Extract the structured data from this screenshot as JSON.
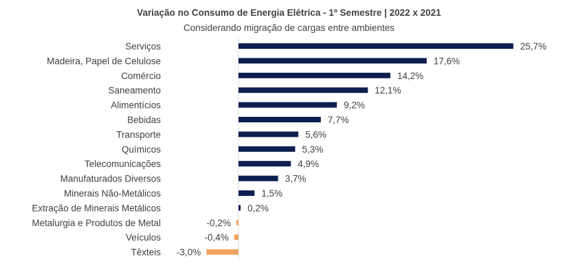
{
  "chart_data": {
    "type": "bar",
    "orientation": "horizontal",
    "title": "Variação no Consumo de Energia Elétrica - 1º Semestre | 2022 x 2021",
    "subtitle": "Considerando migração de cargas entre ambientes",
    "categories": [
      "Serviços",
      "Madeira, Papel de Celulose",
      "Comércio",
      "Saneamento",
      "Alimentícios",
      "Bebidas",
      "Transporte",
      "Químicos",
      "Telecomunicações",
      "Manufaturados Diversos",
      "Minerais Não-Metálicos",
      "Extração de Minerais Metálicos",
      "Metalurgia e Produtos de Metal",
      "Veículos",
      "Têxteis"
    ],
    "values": [
      25.7,
      17.6,
      14.2,
      12.1,
      9.2,
      7.7,
      5.6,
      5.3,
      4.9,
      3.7,
      1.5,
      0.2,
      -0.2,
      -0.4,
      -3.0
    ],
    "value_labels": [
      "25,7%",
      "17,6%",
      "14,2%",
      "12,1%",
      "9,2%",
      "7,7%",
      "5,6%",
      "5,3%",
      "4,9%",
      "3,7%",
      "1,5%",
      "0,2%",
      "-0,2%",
      "-0,4%",
      "-3,0%"
    ],
    "colors": {
      "positive": "#0d1f4f",
      "negative": "#f0a35e",
      "axis": "#d9d9d9"
    },
    "xlim": [
      -3.0,
      25.7
    ],
    "grid": false,
    "legend": "none"
  }
}
